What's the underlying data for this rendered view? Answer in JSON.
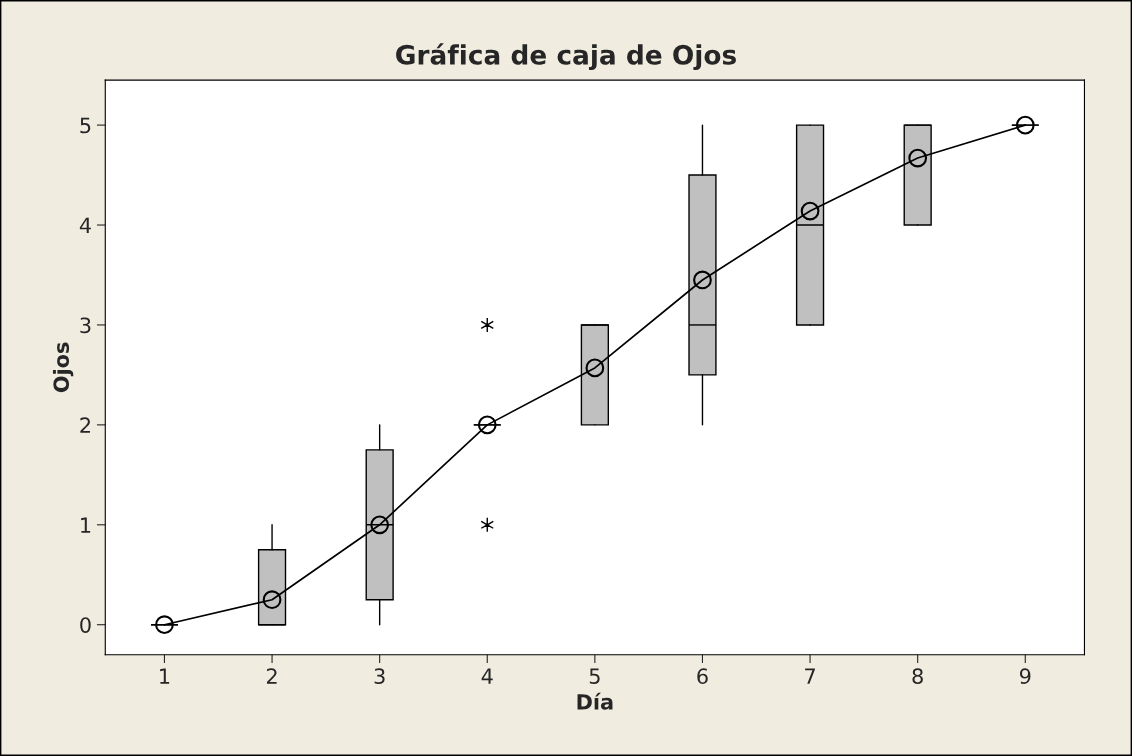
{
  "chart_data": {
    "type": "box",
    "title": "Gráfica de caja de Ojos",
    "xlabel": "Día",
    "ylabel": "Ojos",
    "categories": [
      "1",
      "2",
      "3",
      "4",
      "5",
      "6",
      "7",
      "8",
      "9"
    ],
    "colors": [
      "#000000",
      "#c0c0c0",
      "#c0c0c0",
      "#000000",
      "#c0c0c0",
      "#c0c0c0",
      "#c0c0c0",
      "#c0c0c0",
      "#000000"
    ],
    "boxes": [
      {
        "low": 0,
        "q1": 0,
        "median": 0,
        "q3": 0,
        "high": 0
      },
      {
        "low": 0,
        "q1": 0,
        "median": 0,
        "q3": 0.75,
        "high": 1
      },
      {
        "low": 0,
        "q1": 0.25,
        "median": 1,
        "q3": 1.75,
        "high": 2
      },
      {
        "low": 2,
        "q1": 2,
        "median": 2,
        "q3": 2,
        "high": 2,
        "outliers": [
          1,
          3
        ]
      },
      {
        "low": 2,
        "q1": 2,
        "median": 3,
        "q3": 3,
        "high": 3
      },
      {
        "low": 2,
        "q1": 2.5,
        "median": 3,
        "q3": 4.5,
        "high": 5
      },
      {
        "low": 3,
        "q1": 3,
        "median": 4,
        "q3": 5,
        "high": 5
      },
      {
        "low": 4,
        "q1": 4,
        "median": 5,
        "q3": 5,
        "high": 5
      },
      {
        "low": 5,
        "q1": 5,
        "median": 5,
        "q3": 5,
        "high": 5
      }
    ],
    "series": [
      {
        "type": "line",
        "color": "#000000",
        "marker": "circle",
        "values": [
          0,
          0.25,
          1.0,
          2.0,
          2.57,
          3.45,
          4.14,
          4.67,
          5.0
        ]
      }
    ],
    "ylim": [
      -0.3,
      5.45
    ],
    "yticks": [
      0,
      1,
      2,
      3,
      4,
      5
    ],
    "grid": false,
    "legend": false
  }
}
